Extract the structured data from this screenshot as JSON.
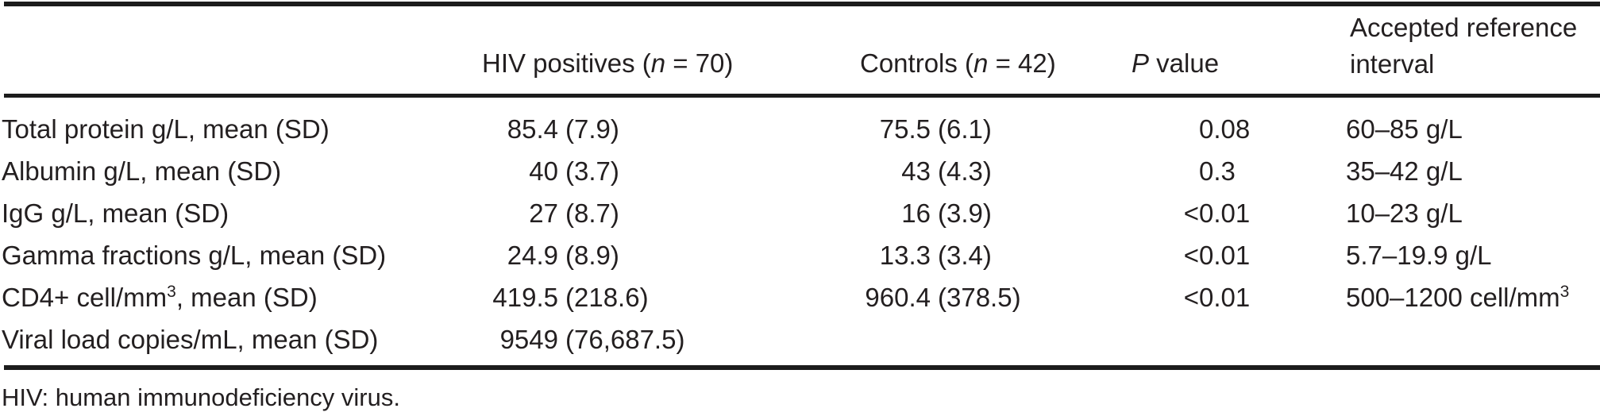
{
  "table": {
    "header": {
      "hiv": {
        "pre": "HIV positives (",
        "it": "n",
        "post": " = 70)"
      },
      "controls": {
        "pre": "Controls (",
        "it": "n",
        "post": " = 42)"
      },
      "p": {
        "it": "P",
        "post": " value"
      },
      "ref_line1": "Accepted reference",
      "ref_line2": "interval"
    },
    "rows": [
      {
        "label": "Total protein g/L, mean (SD)",
        "label_sup": "",
        "label_post": "",
        "hiv_mean": "85.4",
        "hiv_sd": "(7.9)",
        "ctrl_mean": "75.5",
        "ctrl_sd": "(6.1)",
        "p_pre": "",
        "p_val": "0.08",
        "ref": "60–85 g/L",
        "ref_sup": ""
      },
      {
        "label": "Albumin g/L, mean (SD)",
        "label_sup": "",
        "label_post": "",
        "hiv_mean": "40",
        "hiv_sd": "(3.7)",
        "ctrl_mean": "43",
        "ctrl_sd": "(4.3)",
        "p_pre": "",
        "p_val": "0.3",
        "ref": "35–42 g/L",
        "ref_sup": ""
      },
      {
        "label": "IgG g/L, mean (SD)",
        "label_sup": "",
        "label_post": "",
        "hiv_mean": "27",
        "hiv_sd": "(8.7)",
        "ctrl_mean": "16",
        "ctrl_sd": "(3.9)",
        "p_pre": "<",
        "p_val": "0.01",
        "ref": "10–23 g/L",
        "ref_sup": ""
      },
      {
        "label": "Gamma fractions g/L, mean (SD)",
        "label_sup": "",
        "label_post": "",
        "hiv_mean": "24.9",
        "hiv_sd": "(8.9)",
        "ctrl_mean": "13.3",
        "ctrl_sd": "(3.4)",
        "p_pre": "<",
        "p_val": "0.01",
        "ref": "5.7–19.9 g/L",
        "ref_sup": ""
      },
      {
        "label": "CD4+ cell/mm",
        "label_sup": "3",
        "label_post": ", mean (SD)",
        "hiv_mean": "419.5",
        "hiv_sd": "(218.6)",
        "ctrl_mean": "960.4",
        "ctrl_sd": "(378.5)",
        "p_pre": "<",
        "p_val": "0.01",
        "ref": "500–1200 cell/mm",
        "ref_sup": "3"
      },
      {
        "label": "Viral load copies/mL, mean (SD)",
        "label_sup": "",
        "label_post": "",
        "hiv_mean": "9549",
        "hiv_sd": "(76,687.5)",
        "ctrl_mean": "",
        "ctrl_sd": "",
        "p_pre": "",
        "p_val": "",
        "ref": "",
        "ref_sup": ""
      }
    ],
    "footnote": "HIV: human immunodeficiency virus."
  },
  "colors": {
    "text": "#231f20",
    "rule": "#1c1c1c",
    "background": "#ffffff"
  }
}
